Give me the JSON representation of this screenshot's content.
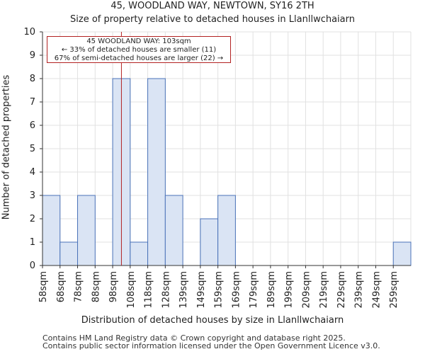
{
  "chart_data": {
    "type": "bar",
    "title": "45, WOODLAND WAY, NEWTOWN, SY16 2TH",
    "subtitle": "Size of property relative to detached houses in Llanllwchaiarn",
    "xlabel": "Distribution of detached houses by size in Llanllwchaiarn",
    "ylabel": "Number of detached properties",
    "categories": [
      "58sqm",
      "68sqm",
      "78sqm",
      "88sqm",
      "98sqm",
      "108sqm",
      "118sqm",
      "128sqm",
      "139sqm",
      "149sqm",
      "159sqm",
      "169sqm",
      "179sqm",
      "189sqm",
      "199sqm",
      "209sqm",
      "219sqm",
      "229sqm",
      "239sqm",
      "249sqm",
      "259sqm"
    ],
    "values": [
      3,
      1,
      3,
      0,
      8,
      1,
      8,
      3,
      0,
      2,
      3,
      0,
      0,
      0,
      0,
      0,
      0,
      0,
      0,
      0,
      1
    ],
    "ylim": [
      0,
      10
    ],
    "yticks": [
      0,
      1,
      2,
      3,
      4,
      5,
      6,
      7,
      8,
      9,
      10
    ],
    "marker_value_sqm": 103,
    "annotation": {
      "line1": "45 WOODLAND WAY: 103sqm",
      "line2": "← 33% of detached houses are smaller (11)",
      "line3": "67% of semi-detached houses are larger (22) →"
    },
    "colors": {
      "bar_fill": "#dae4f4",
      "bar_stroke": "#4a72b8",
      "marker": "#b22222",
      "grid": "#e1e1e1"
    }
  },
  "footer": {
    "line1": "Contains HM Land Registry data © Crown copyright and database right 2025.",
    "line2": "Contains public sector information licensed under the Open Government Licence v3.0."
  }
}
